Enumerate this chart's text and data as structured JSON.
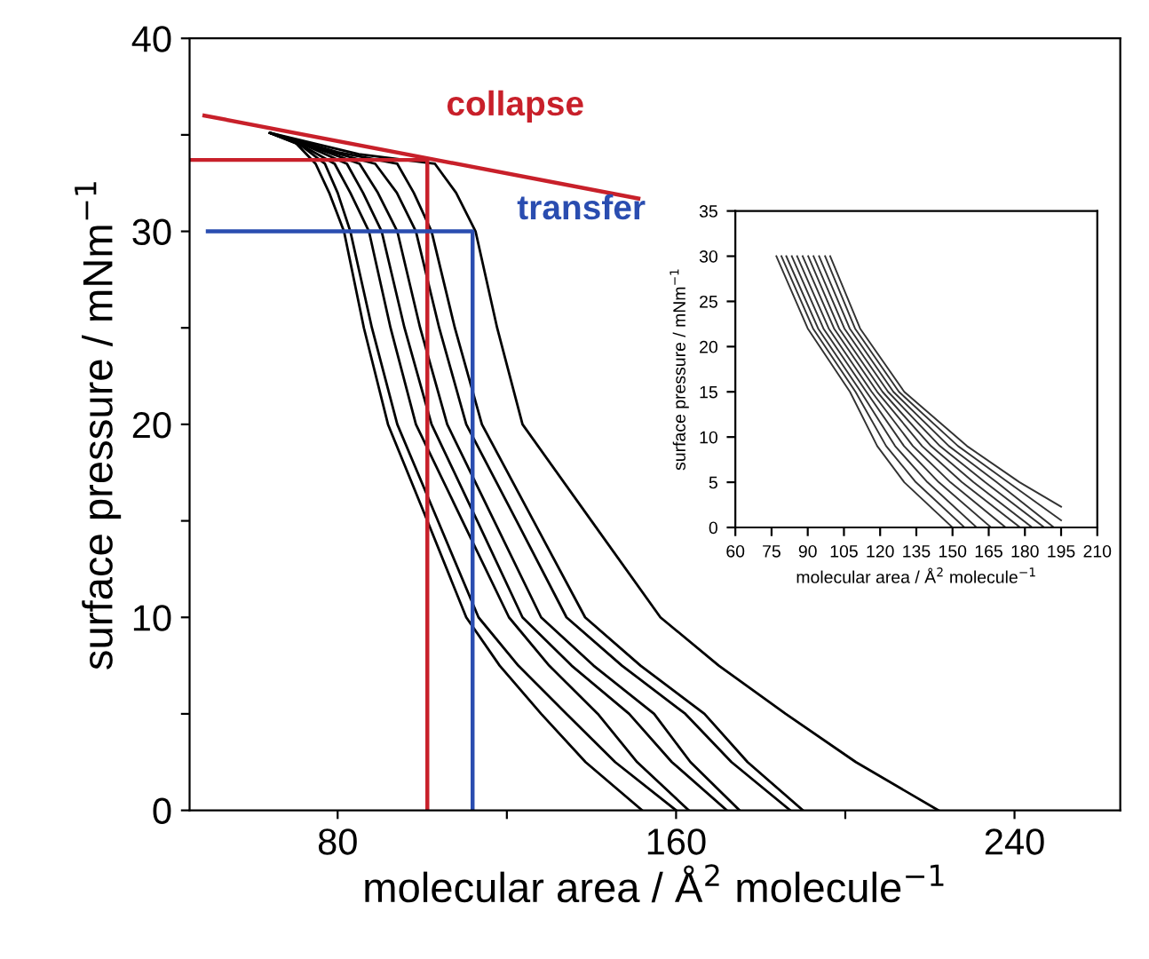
{
  "chart_data": [
    {
      "type": "line",
      "xlabel": "molecular area / Å$^{2}$ molecule$^{−1}$",
      "ylabel": "surface pressure / mNm$^{−1}$",
      "xlim": [
        45,
        265
      ],
      "ylim": [
        0,
        40
      ],
      "xticks": [
        80,
        {
          "value": 120,
          "label": null
        },
        160,
        {
          "value": 200,
          "label": null
        },
        240
      ],
      "yticks": [
        0,
        {
          "value": 5,
          "label": null
        },
        10,
        {
          "value": 15,
          "label": null
        },
        20,
        {
          "value": 25,
          "label": null
        },
        30,
        {
          "value": 35,
          "label": null
        },
        40
      ],
      "series": [
        {
          "color": "#000000",
          "x": [
            64,
            70,
            74.8,
            78,
            81.5,
            86.2,
            91.9,
            101.2,
            110.4,
            118.3,
            128.1,
            138.6,
            152
          ],
          "values": [
            35.1,
            34.6,
            33.5,
            32,
            30,
            25,
            20,
            15,
            10,
            7.5,
            5,
            2.5,
            0
          ]
        },
        {
          "color": "#000000",
          "x": [
            64,
            71,
            77,
            80,
            83,
            88.1,
            94.1,
            103.7,
            113.3,
            122.7,
            134.1,
            145.6,
            160
          ],
          "values": [
            35.1,
            34.5,
            33.5,
            32,
            30,
            25,
            20,
            15,
            10,
            7.5,
            5,
            2.5,
            0
          ]
        },
        {
          "color": "#000000",
          "x": [
            64,
            72,
            79.3,
            83,
            87.4,
            92.5,
            98.5,
            109.5,
            120.5,
            130,
            141.5,
            150.8,
            163
          ],
          "values": [
            35.1,
            34.4,
            33.5,
            32,
            30,
            25,
            20,
            15,
            10,
            7.5,
            5,
            2.5,
            0
          ]
        },
        {
          "color": "#000000",
          "x": [
            64,
            73,
            82.2,
            86,
            90.4,
            95.8,
            102.2,
            113,
            123.7,
            135.3,
            148.9,
            159,
            172
          ],
          "values": [
            35.1,
            34.4,
            33.5,
            32,
            30,
            25,
            20,
            15,
            10,
            7.5,
            5,
            2.5,
            0
          ]
        },
        {
          "color": "#000000",
          "x": [
            64,
            75,
            85.2,
            89.5,
            94.1,
            99.5,
            105.9,
            117,
            128.1,
            140.5,
            154.8,
            163.4,
            175
          ],
          "values": [
            35.1,
            34.3,
            33.5,
            32,
            30,
            25,
            20,
            15,
            10,
            7.5,
            5,
            2.5,
            0
          ]
        },
        {
          "color": "#000000",
          "x": [
            64,
            77,
            88.9,
            94,
            98.5,
            104,
            110.4,
            122.3,
            134.1,
            147.2,
            162.2,
            173.1,
            187
          ],
          "values": [
            35.1,
            34.2,
            33.5,
            32,
            30,
            25,
            20,
            15,
            10,
            7.5,
            5,
            2.5,
            0
          ]
        },
        {
          "color": "#000000",
          "x": [
            64,
            80,
            94.1,
            98,
            102.2,
            107.7,
            114.1,
            126.3,
            138.5,
            151.6,
            166.7,
            176.9,
            190
          ],
          "values": [
            35.1,
            34.1,
            33.5,
            32,
            30,
            25,
            20,
            15,
            10,
            7.5,
            5,
            2.5,
            0
          ]
        },
        {
          "color": "#000000",
          "x": [
            64,
            85,
            103,
            108,
            112.6,
            117.7,
            123.7,
            140,
            156.3,
            170.1,
            185.9,
            202.5,
            222
          ],
          "values": [
            35.1,
            34,
            33.5,
            32,
            30,
            25,
            20,
            15,
            10,
            7.5,
            5,
            2.5,
            0
          ]
        },
        {
          "color": "#c8202a",
          "x": [
            48.5,
            151.1
          ],
          "values": [
            36,
            31.7
          ]
        },
        {
          "color": "#c8202a",
          "x": [
            45,
            101.2,
            101.2
          ],
          "values": [
            33.7,
            33.7,
            0
          ]
        },
        {
          "color": "#2a4db0",
          "x": [
            49.3,
            111.9,
            111.9
          ],
          "values": [
            30,
            30,
            0
          ]
        }
      ],
      "annotations": [
        "collapse",
        "transfer"
      ]
    },
    {
      "type": "line",
      "xlabel": "molecular area / Å$^{2}$ molecule$^{−1}$",
      "ylabel": "surface pressure / mNm$^{−1}$",
      "xlim": [
        60,
        210
      ],
      "ylim": [
        0,
        35
      ],
      "xticks": [
        60,
        75,
        90,
        105,
        120,
        135,
        150,
        165,
        180,
        195,
        210
      ],
      "yticks": [
        0,
        5,
        10,
        15,
        20,
        25,
        30,
        35
      ],
      "series": [
        {
          "color": "#333333",
          "x": [
            77,
            90,
            107.5,
            118.8,
            130,
            150
          ],
          "values": [
            30,
            22,
            15,
            9,
            5,
            0
          ]
        },
        {
          "color": "#333333",
          "x": [
            79.1,
            92.2,
            109.8,
            122.5,
            134.8,
            155
          ],
          "values": [
            30,
            22,
            15,
            9,
            5,
            0
          ]
        },
        {
          "color": "#333333",
          "x": [
            81.1,
            94.3,
            112,
            126.2,
            139.6,
            160
          ],
          "values": [
            30,
            22,
            15,
            9,
            5,
            0
          ]
        },
        {
          "color": "#333333",
          "x": [
            83.4,
            96.5,
            114.3,
            129.9,
            144.3,
            166
          ],
          "values": [
            30,
            22,
            15,
            9,
            5,
            0
          ]
        },
        {
          "color": "#333333",
          "x": [
            85.6,
            98.7,
            116.5,
            133.6,
            149.1,
            172
          ],
          "values": [
            30,
            22,
            15,
            9,
            5,
            0
          ]
        },
        {
          "color": "#333333",
          "x": [
            87.9,
            100.9,
            118.8,
            137.4,
            153.9,
            178
          ],
          "values": [
            30,
            22,
            15,
            9,
            5,
            0
          ]
        },
        {
          "color": "#333333",
          "x": [
            90.2,
            103,
            121,
            141.1,
            158.7,
            183
          ],
          "values": [
            30,
            22,
            15,
            9,
            5,
            0
          ]
        },
        {
          "color": "#333333",
          "x": [
            92.4,
            105.2,
            123.3,
            144.8,
            163.5,
            188
          ],
          "values": [
            30,
            22,
            15,
            9,
            5,
            0
          ]
        },
        {
          "color": "#333333",
          "x": [
            94.7,
            107.4,
            125.5,
            148.5,
            168.3,
            192
          ],
          "values": [
            30,
            22,
            15,
            9,
            5,
            0
          ]
        },
        {
          "color": "#333333",
          "x": [
            97.2,
            109.6,
            127.8,
            152.3,
            173,
            195
          ],
          "values": [
            30,
            22,
            15,
            9,
            5,
            0.8
          ]
        },
        {
          "color": "#333333",
          "x": [
            99.3,
            111.7,
            130,
            156,
            177.8,
            195
          ],
          "values": [
            30,
            22,
            15,
            9,
            5,
            2.3
          ]
        }
      ]
    }
  ]
}
